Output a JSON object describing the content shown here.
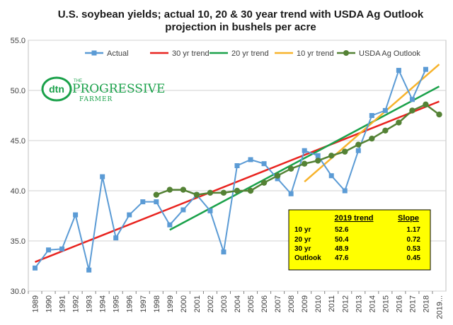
{
  "chart_data": {
    "type": "line",
    "title_line1": "U.S. soybean yields; actual 10, 20 & 30 year trend with USDA Ag Outlook",
    "title_line2": "projection in bushels per acre",
    "xlabel": "",
    "ylabel": "",
    "ylim": [
      30,
      55
    ],
    "yticks": [
      "30.0",
      "35.0",
      "40.0",
      "45.0",
      "50.0",
      "55.0"
    ],
    "x": [
      "1989",
      "1990",
      "1991",
      "1992",
      "1993",
      "1994",
      "1995",
      "1996",
      "1997",
      "1998",
      "1999",
      "2000",
      "2001",
      "2002",
      "2003",
      "2004",
      "2005",
      "2006",
      "2007",
      "2008",
      "2009",
      "2010",
      "2011",
      "2012",
      "2013",
      "2014",
      "2015",
      "2016",
      "2017",
      "2018",
      "2019..."
    ],
    "grid": true,
    "legend_placement": "top",
    "series": [
      {
        "name": "Actual",
        "color": "#5b9bd5",
        "marker": "square",
        "x": [
          1989,
          1990,
          1991,
          1992,
          1993,
          1994,
          1995,
          1996,
          1997,
          1998,
          1999,
          2000,
          2001,
          2002,
          2003,
          2004,
          2005,
          2006,
          2007,
          2008,
          2009,
          2010,
          2011,
          2012,
          2013,
          2014,
          2015,
          2016,
          2017,
          2018
        ],
        "values": [
          32.3,
          34.1,
          34.2,
          37.6,
          32.1,
          41.4,
          35.3,
          37.6,
          38.9,
          38.9,
          36.6,
          38.1,
          39.6,
          38.0,
          33.9,
          42.5,
          43.1,
          42.7,
          41.2,
          39.7,
          44.0,
          43.5,
          41.5,
          40.0,
          44.0,
          47.5,
          48.0,
          52.0,
          49.1,
          52.1
        ]
      },
      {
        "name": "30 yr trend",
        "color": "#e8231f",
        "marker": "none",
        "x": [
          1989,
          2019
        ],
        "values": [
          32.9,
          48.9
        ]
      },
      {
        "name": "20 yr trend",
        "color": "#1aa14a",
        "marker": "none",
        "x": [
          1999,
          2019
        ],
        "values": [
          36.1,
          50.4
        ]
      },
      {
        "name": "10 yr trend",
        "color": "#f7b32b",
        "marker": "none",
        "x": [
          2009,
          2019
        ],
        "values": [
          40.9,
          52.6
        ]
      },
      {
        "name": "USDA Ag Outlook",
        "color": "#548235",
        "marker": "circle",
        "x": [
          1998,
          1999,
          2000,
          2001,
          2002,
          2003,
          2004,
          2005,
          2006,
          2007,
          2008,
          2009,
          2010,
          2011,
          2012,
          2013,
          2014,
          2015,
          2016,
          2017,
          2018,
          2019
        ],
        "values": [
          39.6,
          40.1,
          40.1,
          39.6,
          39.8,
          39.8,
          40.0,
          40.0,
          40.8,
          41.5,
          42.2,
          42.7,
          43.0,
          43.5,
          43.9,
          44.6,
          45.2,
          46.0,
          46.8,
          48.0,
          48.6,
          47.6
        ]
      }
    ],
    "trend_table": {
      "headers": [
        "",
        "2019 trend",
        "Slope"
      ],
      "rows": [
        [
          "10 yr",
          "52.6",
          "1.17"
        ],
        [
          "20 yr",
          "50.4",
          "0.72"
        ],
        [
          "30 yr",
          "48.9",
          "0.53"
        ],
        [
          "Outlook",
          "47.6",
          "0.45"
        ]
      ]
    }
  },
  "logo": {
    "badge": "dtn",
    "text_line1": "PROGRESSIVE",
    "text_line2": "FARMER",
    "prefix": "THE"
  }
}
